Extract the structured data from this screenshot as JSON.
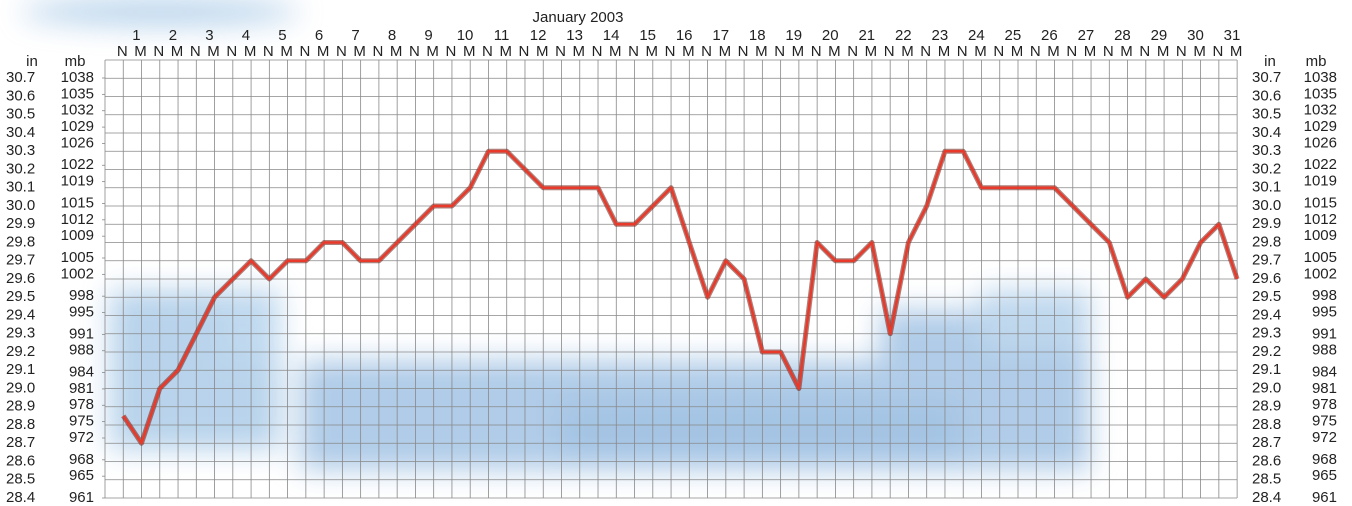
{
  "chart_data": {
    "type": "line",
    "title": "January 2003",
    "day_labels": [
      1,
      2,
      3,
      4,
      5,
      6,
      7,
      8,
      9,
      10,
      11,
      12,
      13,
      14,
      15,
      16,
      17,
      18,
      19,
      20,
      21,
      22,
      23,
      24,
      25,
      26,
      27,
      28,
      29,
      30,
      31
    ],
    "categories": [
      "N",
      "M",
      "N",
      "M",
      "N",
      "M",
      "N",
      "M",
      "N",
      "M",
      "N",
      "M",
      "N",
      "M",
      "N",
      "M",
      "N",
      "M",
      "N",
      "M",
      "N",
      "M",
      "N",
      "M",
      "N",
      "M",
      "N",
      "M",
      "N",
      "M",
      "N",
      "M",
      "N",
      "M",
      "N",
      "M",
      "N",
      "M",
      "N",
      "M",
      "N",
      "M",
      "N",
      "M",
      "N",
      "M",
      "N",
      "M",
      "N",
      "M",
      "N",
      "M",
      "N",
      "M",
      "N",
      "M",
      "N",
      "M",
      "N",
      "M",
      "N",
      "M"
    ],
    "series": [
      {
        "color": "#e8392a",
        "values": [
          28.85,
          28.7,
          29.0,
          29.1,
          29.3,
          29.5,
          29.6,
          29.7,
          29.6,
          29.7,
          29.7,
          29.8,
          29.8,
          29.7,
          29.7,
          29.8,
          29.9,
          30.0,
          30.0,
          30.1,
          30.3,
          30.3,
          30.2,
          30.1,
          30.1,
          30.1,
          30.1,
          29.9,
          29.9,
          30.0,
          30.1,
          29.8,
          29.5,
          29.7,
          29.6,
          29.2,
          29.2,
          29.0,
          29.8,
          29.7,
          29.7,
          29.8,
          29.3,
          29.8,
          30.0,
          30.3,
          30.3,
          30.1,
          30.1,
          30.1,
          30.1,
          30.1,
          30.0,
          29.9,
          29.8,
          29.5,
          29.6,
          29.5,
          29.6,
          29.8,
          29.9,
          29.6
        ]
      }
    ],
    "y_label": "in",
    "y2_label": "mb",
    "ylim": [
      28.4,
      30.8
    ],
    "yticks": [
      28.4,
      28.5,
      28.6,
      28.7,
      28.8,
      28.9,
      {
        "value": 29,
        "label": "29.0"
      },
      29.1,
      29.2,
      29.3,
      29.4,
      29.5,
      29.6,
      29.7,
      29.8,
      29.9,
      {
        "value": 30,
        "label": "30.0"
      },
      30.1,
      30.2,
      30.3,
      30.4,
      30.5,
      30.6,
      30.7
    ],
    "y2lim": [
      961,
      1041.3
    ],
    "y2ticks": [
      961,
      965,
      968,
      972,
      975,
      978,
      981,
      984,
      988,
      991,
      995,
      998,
      1002,
      1005,
      1009,
      1012,
      1015,
      1019,
      1022,
      1026,
      1029,
      1032,
      1035,
      1038
    ],
    "grid": true
  }
}
